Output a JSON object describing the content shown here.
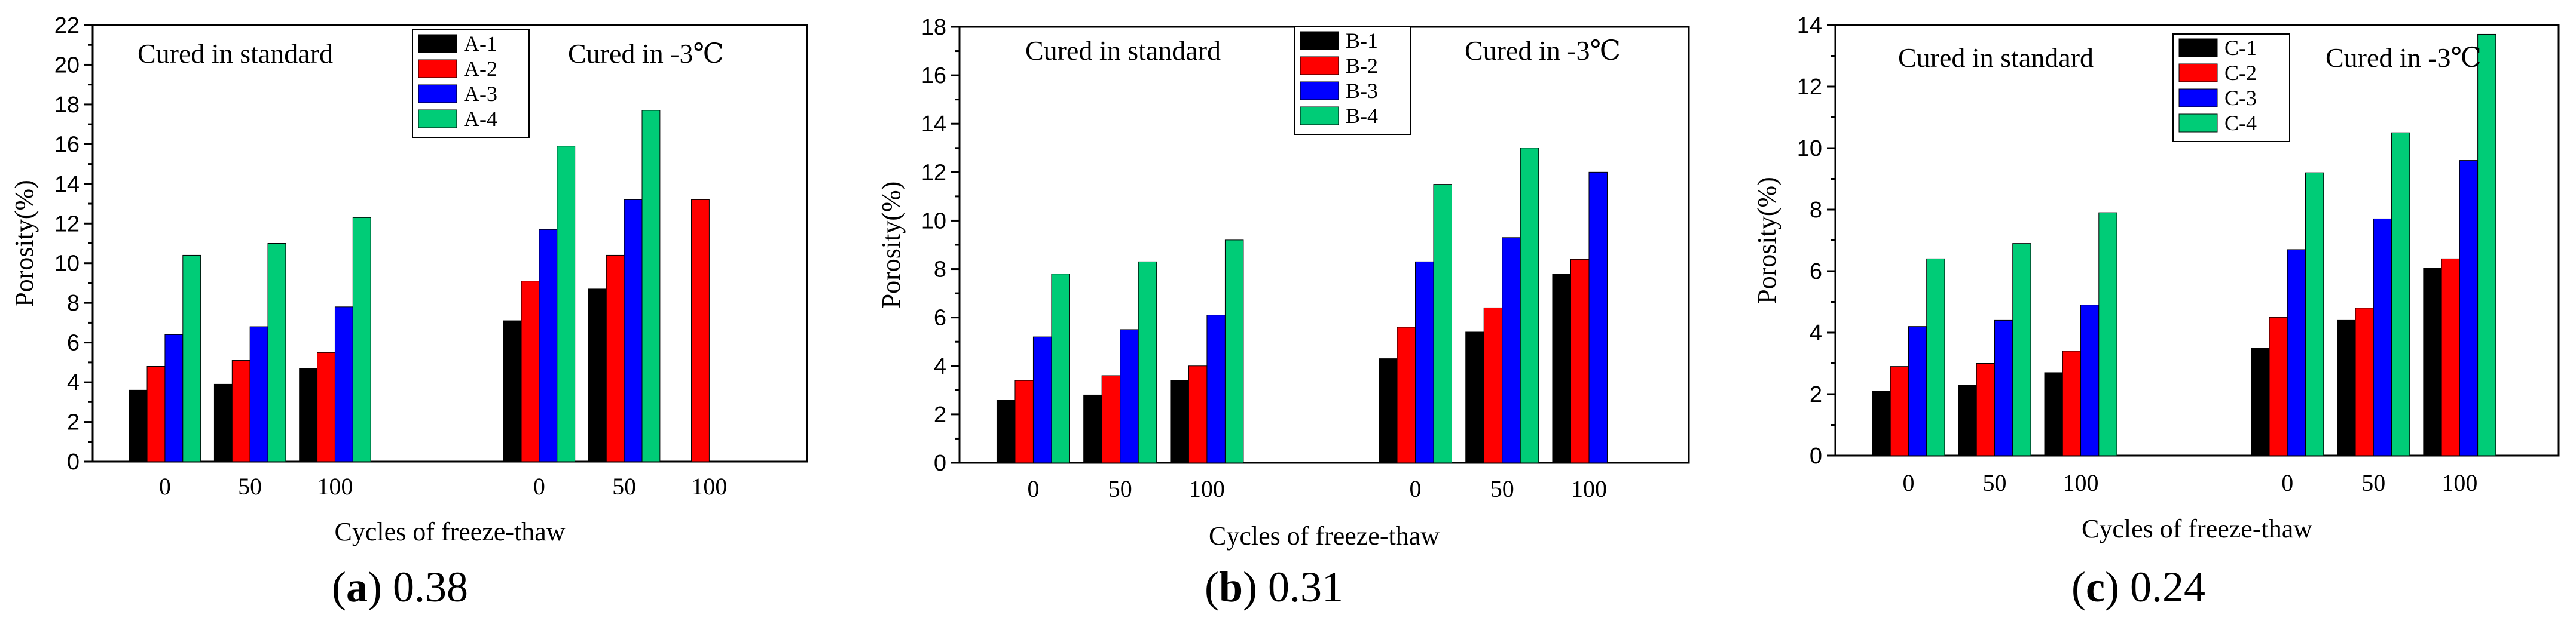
{
  "colors": {
    "s1": "#000000",
    "s2": "#ff0000",
    "s3": "#0000ff",
    "s4": "#00cc77"
  },
  "chart_data": [
    {
      "type": "bar",
      "caption_letter": "a",
      "caption_value": " 0.38",
      "ylabel": "Porosity(%)",
      "xlabel": "Cycles of freeze-thaw",
      "ylim": [
        0,
        22
      ],
      "yticks": [
        0,
        2,
        4,
        6,
        8,
        10,
        12,
        14,
        16,
        18,
        20,
        22
      ],
      "groups": [
        "Cured in standard",
        "Cured in -3℃"
      ],
      "categories": [
        "0",
        "50",
        "100",
        "0",
        "50",
        "100"
      ],
      "series": [
        {
          "name": "A-1",
          "values": [
            3.6,
            3.9,
            4.7,
            7.1,
            8.7,
            null
          ]
        },
        {
          "name": "A-2",
          "values": [
            4.8,
            5.1,
            5.5,
            9.1,
            10.4,
            13.2
          ]
        },
        {
          "name": "A-3",
          "values": [
            6.4,
            6.8,
            7.8,
            11.7,
            13.2,
            null
          ]
        },
        {
          "name": "A-4",
          "values": [
            10.4,
            11.0,
            12.3,
            15.9,
            17.7,
            null
          ]
        }
      ]
    },
    {
      "type": "bar",
      "caption_letter": "b",
      "caption_value": " 0.31",
      "ylabel": "Porosity(%)",
      "xlabel": "Cycles of freeze-thaw",
      "ylim": [
        0,
        18
      ],
      "yticks": [
        0,
        2,
        4,
        6,
        8,
        10,
        12,
        14,
        16,
        18
      ],
      "groups": [
        "Cured in standard",
        "Cured in -3℃"
      ],
      "categories": [
        "0",
        "50",
        "100",
        "0",
        "50",
        "100"
      ],
      "series": [
        {
          "name": "B-1",
          "values": [
            2.6,
            2.8,
            3.4,
            4.3,
            5.4,
            7.8
          ]
        },
        {
          "name": "B-2",
          "values": [
            3.4,
            3.6,
            4.0,
            5.6,
            6.4,
            8.4
          ]
        },
        {
          "name": "B-3",
          "values": [
            5.2,
            5.5,
            6.1,
            8.3,
            9.3,
            12.0
          ]
        },
        {
          "name": "B-4",
          "values": [
            7.8,
            8.3,
            9.2,
            11.5,
            13.0,
            null
          ]
        }
      ]
    },
    {
      "type": "bar",
      "caption_letter": "c",
      "caption_value": " 0.24",
      "ylabel": "Porosity(%)",
      "xlabel": "Cycles of freeze-thaw",
      "ylim": [
        0,
        14
      ],
      "yticks": [
        0,
        2,
        4,
        6,
        8,
        10,
        12,
        14
      ],
      "groups": [
        "Cured in standard",
        "Cured in -3℃"
      ],
      "categories": [
        "0",
        "50",
        "100",
        "0",
        "50",
        "100"
      ],
      "series": [
        {
          "name": "C-1",
          "values": [
            2.1,
            2.3,
            2.7,
            3.5,
            4.4,
            6.1
          ]
        },
        {
          "name": "C-2",
          "values": [
            2.9,
            3.0,
            3.4,
            4.5,
            4.8,
            6.4
          ]
        },
        {
          "name": "C-3",
          "values": [
            4.2,
            4.4,
            4.9,
            6.7,
            7.7,
            9.6
          ]
        },
        {
          "name": "C-4",
          "values": [
            6.4,
            6.9,
            7.9,
            9.2,
            10.5,
            13.7
          ]
        }
      ]
    }
  ]
}
